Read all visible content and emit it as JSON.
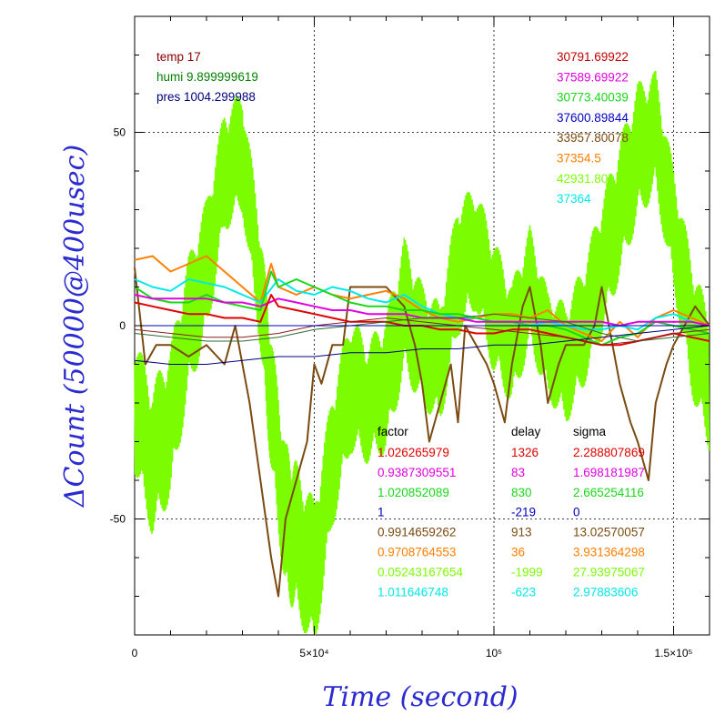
{
  "chart_data": {
    "type": "line",
    "xlabel": "Time (second)",
    "ylabel": "ΔCount (50000@400usec)",
    "xlim": [
      0,
      160000
    ],
    "ylim": [
      -80,
      80
    ],
    "x_ticks": [
      {
        "value": 0,
        "label": "0"
      },
      {
        "value": 50000,
        "label": "5×10⁴"
      },
      {
        "value": 100000,
        "label": "10⁵"
      },
      {
        "value": 150000,
        "label": "1.5×10⁵"
      }
    ],
    "y_ticks": [
      {
        "value": 50,
        "label": "50"
      },
      {
        "value": 0,
        "label": "0"
      },
      {
        "value": -50,
        "label": "-50"
      }
    ],
    "grid": true,
    "env_legend": [
      {
        "text": "temp 17",
        "color": "#8b0000"
      },
      {
        "text": "humi 9.899999619",
        "color": "#008000"
      },
      {
        "text": "pres 1004.299988",
        "color": "#000080"
      }
    ],
    "series_legend": [
      {
        "text": "30791.69922",
        "color": "#c40000"
      },
      {
        "text": "37589.69922",
        "color": "#e000e0"
      },
      {
        "text": "30773.40039",
        "color": "#18d818"
      },
      {
        "text": "37600.89844",
        "color": "#0000c0"
      },
      {
        "text": "33957.80078",
        "color": "#7a4a10"
      },
      {
        "text": "37354.5",
        "color": "#ff7f00"
      },
      {
        "text": "42931.80",
        "color": "#7cfc00"
      },
      {
        "text": "37364",
        "color": "#00e8e8"
      }
    ],
    "table_headers": [
      "factor",
      "delay",
      "sigma"
    ],
    "table_rows": [
      {
        "factor": "1.026265979",
        "delay": "1326",
        "sigma": "2.288807869",
        "color": "#e00000"
      },
      {
        "factor": "0.9387309551",
        "delay": "83",
        "sigma": "1.698181987",
        "color": "#e000e0"
      },
      {
        "factor": "1.020852089",
        "delay": "830",
        "sigma": "2.665254116",
        "color": "#18d818"
      },
      {
        "factor": "1",
        "delay": "-219",
        "sigma": "0",
        "color": "#0000c0"
      },
      {
        "factor": "0.9914659262",
        "delay": "913",
        "sigma": "13.02570057",
        "color": "#7a4a10"
      },
      {
        "factor": "0.9708764553",
        "delay": "36",
        "sigma": "3.931364298",
        "color": "#ff7f00"
      },
      {
        "factor": "0.05243167654",
        "delay": "-1999",
        "sigma": "27.93975067",
        "color": "#7cfc00"
      },
      {
        "factor": "1.011646748",
        "delay": "-623",
        "sigma": "2.97883606",
        "color": "#00e8e8"
      }
    ],
    "series": [
      {
        "color": "#7cfc00",
        "fill_band": true,
        "x": [
          0,
          5000,
          10000,
          15000,
          20000,
          25000,
          30000,
          35000,
          38000,
          42000,
          45000,
          50000,
          55000,
          60000,
          65000,
          70000,
          75000,
          80000,
          85000,
          90000,
          95000,
          100000,
          105000,
          110000,
          115000,
          120000,
          125000,
          130000,
          135000,
          140000,
          145000,
          150000,
          155000,
          160000
        ],
        "y": [
          -20,
          -35,
          -25,
          0,
          15,
          40,
          45,
          10,
          -20,
          -50,
          -55,
          -65,
          -35,
          -15,
          -20,
          -15,
          5,
          -5,
          -10,
          15,
          20,
          5,
          -5,
          10,
          -5,
          -10,
          0,
          15,
          30,
          45,
          50,
          25,
          0,
          -15
        ],
        "amp": [
          18,
          20,
          20,
          18,
          18,
          16,
          16,
          16,
          18,
          20,
          20,
          20,
          18,
          18,
          16,
          18,
          18,
          16,
          16,
          18,
          16,
          18,
          16,
          16,
          14,
          16,
          16,
          18,
          18,
          18,
          16,
          16,
          18,
          18
        ]
      },
      {
        "color": "#7a4a10",
        "x": [
          0,
          3000,
          6000,
          10000,
          15000,
          20000,
          25000,
          28000,
          32000,
          35000,
          38000,
          40000,
          42000,
          45000,
          48000,
          50000,
          52000,
          55000,
          58000,
          60000,
          65000,
          70000,
          75000,
          78000,
          80000,
          82000,
          85000,
          88000,
          90000,
          92000,
          95000,
          98000,
          100000,
          103000,
          105000,
          108000,
          110000,
          113000,
          115000,
          118000,
          120000,
          125000,
          128000,
          130000,
          133000,
          135000,
          138000,
          140000,
          143000,
          145000,
          148000,
          150000,
          153000,
          156000,
          160000
        ],
        "y": [
          15,
          -10,
          -5,
          -5,
          -8,
          -5,
          -10,
          0,
          -20,
          -40,
          -60,
          -70,
          -50,
          -40,
          -30,
          -10,
          -15,
          -5,
          -5,
          10,
          10,
          10,
          5,
          -5,
          -15,
          -30,
          -20,
          -10,
          -25,
          0,
          -5,
          -10,
          -15,
          -25,
          -10,
          5,
          10,
          -5,
          -20,
          -10,
          -5,
          -5,
          0,
          10,
          -5,
          -15,
          -25,
          -30,
          -40,
          -20,
          -10,
          -5,
          0,
          5,
          0
        ]
      },
      {
        "color": "#ff7f00",
        "x": [
          0,
          5000,
          10000,
          15000,
          20000,
          25000,
          30000,
          35000,
          38000,
          40000,
          45000,
          50000,
          55000,
          60000,
          65000,
          70000,
          75000,
          80000,
          85000,
          90000,
          95000,
          100000,
          105000,
          110000,
          115000,
          120000,
          125000,
          130000,
          135000,
          140000,
          145000,
          150000,
          155000,
          160000
        ],
        "y": [
          17,
          18,
          14,
          16,
          18,
          14,
          10,
          6,
          16,
          10,
          8,
          10,
          8,
          7,
          8,
          9,
          7,
          4,
          2,
          1,
          2,
          3,
          3,
          2,
          4,
          0,
          -2,
          -4,
          1,
          -3,
          2,
          4,
          2,
          0
        ]
      },
      {
        "color": "#00e8e8",
        "x": [
          0,
          5000,
          10000,
          15000,
          20000,
          25000,
          30000,
          35000,
          40000,
          45000,
          50000,
          55000,
          60000,
          65000,
          70000,
          75000,
          80000,
          85000,
          90000,
          95000,
          100000,
          105000,
          110000,
          115000,
          120000,
          125000,
          130000,
          135000,
          140000,
          145000,
          150000,
          155000,
          160000
        ],
        "y": [
          12,
          10,
          9,
          12,
          11,
          10,
          8,
          6,
          12,
          9,
          8,
          10,
          9,
          7,
          6,
          8,
          5,
          3,
          2,
          2,
          1,
          1,
          0,
          1,
          0,
          -1,
          -1,
          0,
          -1,
          2,
          3,
          1,
          0
        ]
      },
      {
        "color": "#18d818",
        "x": [
          0,
          5000,
          10000,
          15000,
          20000,
          25000,
          30000,
          35000,
          38000,
          40000,
          45000,
          50000,
          55000,
          60000,
          65000,
          70000,
          75000,
          80000,
          85000,
          90000,
          95000,
          100000,
          105000,
          110000,
          115000,
          120000,
          125000,
          130000,
          135000,
          140000,
          145000,
          150000,
          155000,
          160000
        ],
        "y": [
          10,
          7,
          6,
          6,
          8,
          6,
          5,
          4,
          14,
          10,
          12,
          10,
          8,
          6,
          5,
          5,
          4,
          4,
          3,
          3,
          2,
          1,
          1,
          0,
          0,
          -1,
          -3,
          -5,
          -3,
          -2,
          1,
          0,
          -1,
          -2
        ]
      },
      {
        "color": "#e000e0",
        "x": [
          0,
          5000,
          10000,
          15000,
          20000,
          25000,
          30000,
          35000,
          40000,
          45000,
          50000,
          55000,
          60000,
          65000,
          70000,
          75000,
          80000,
          85000,
          90000,
          95000,
          100000,
          105000,
          110000,
          115000,
          120000,
          125000,
          130000,
          135000,
          140000,
          145000,
          150000,
          155000,
          160000
        ],
        "y": [
          8,
          7,
          7,
          7,
          7,
          6,
          6,
          5,
          7,
          6,
          5,
          4,
          4,
          3,
          3,
          3,
          2,
          2,
          2,
          1,
          1,
          1,
          1,
          1,
          1,
          1,
          1,
          0,
          1,
          1,
          1,
          1,
          0
        ]
      },
      {
        "color": "#e00000",
        "x": [
          0,
          5000,
          10000,
          15000,
          20000,
          25000,
          30000,
          35000,
          38000,
          40000,
          45000,
          50000,
          55000,
          60000,
          65000,
          70000,
          75000,
          80000,
          85000,
          90000,
          95000,
          100000,
          105000,
          110000,
          115000,
          120000,
          125000,
          130000,
          135000,
          140000,
          145000,
          150000,
          155000,
          160000
        ],
        "y": [
          6,
          5,
          4,
          3,
          3,
          2,
          2,
          1,
          8,
          5,
          4,
          3,
          2,
          1,
          1,
          1,
          0,
          0,
          -1,
          -1,
          -2,
          -2,
          -1,
          -1,
          -2,
          -3,
          -4,
          -5,
          -5,
          -4,
          -3,
          -2,
          -3,
          -4
        ]
      },
      {
        "color": "#2f6b2f",
        "x": [
          0,
          10000,
          20000,
          30000,
          40000,
          50000,
          60000,
          70000,
          80000,
          90000,
          100000,
          110000,
          120000,
          130000,
          140000,
          150000,
          160000
        ],
        "y": [
          -2,
          -3,
          -4,
          -4,
          -3,
          -1,
          0,
          1,
          2,
          2,
          3,
          2,
          1,
          -2,
          -4,
          -3,
          -2
        ]
      },
      {
        "color": "#8b2020",
        "x": [
          0,
          10000,
          20000,
          30000,
          40000,
          50000,
          60000,
          70000,
          80000,
          90000,
          100000,
          110000,
          120000,
          130000,
          140000,
          150000,
          160000
        ],
        "y": [
          -1,
          -2,
          -3,
          -3,
          -2,
          0,
          1,
          2,
          1,
          0,
          -1,
          -2,
          -3,
          -5,
          -4,
          -2,
          -1
        ]
      },
      {
        "color": "#000080",
        "x": [
          0,
          10000,
          20000,
          30000,
          40000,
          50000,
          60000,
          70000,
          80000,
          90000,
          100000,
          110000,
          120000,
          130000,
          140000,
          150000,
          160000
        ],
        "y": [
          -9,
          -10,
          -10,
          -9,
          -8,
          -8,
          -7,
          -7,
          -6,
          -6,
          -5,
          -5,
          -4,
          -3,
          -2,
          -1,
          0
        ]
      }
    ]
  }
}
